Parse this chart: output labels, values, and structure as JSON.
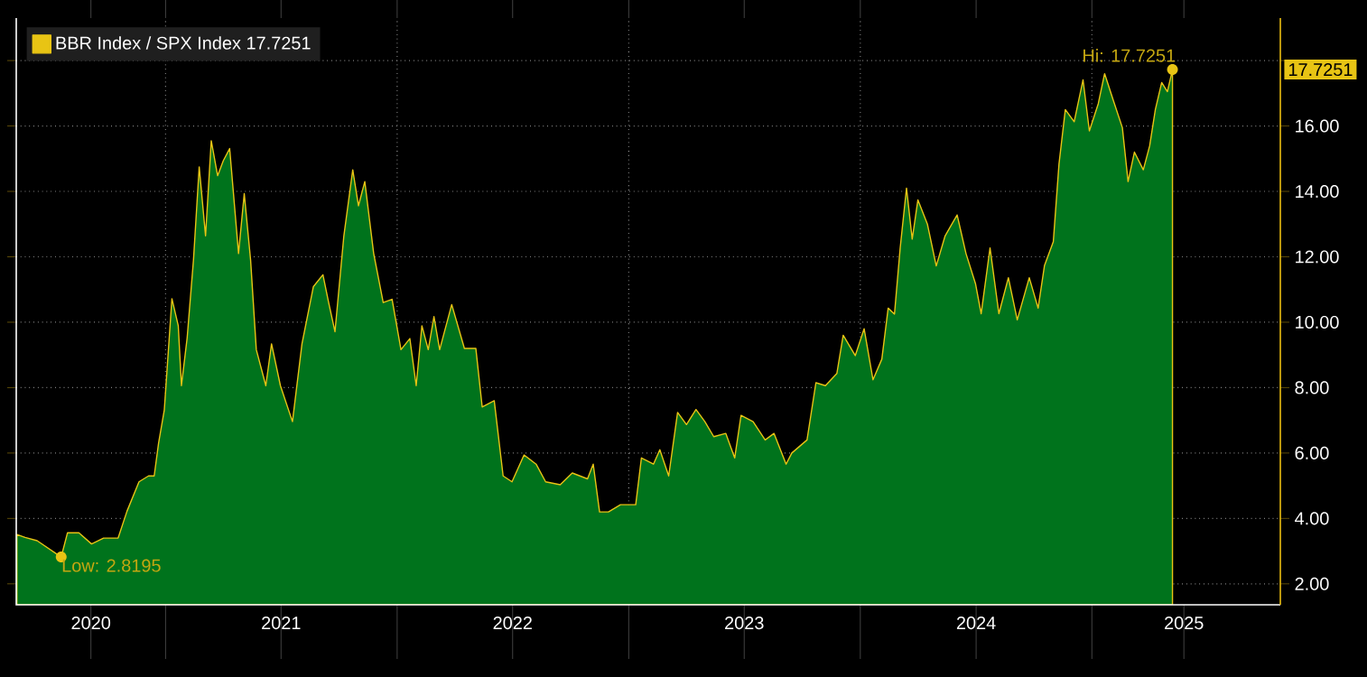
{
  "chart_data": {
    "type": "area",
    "series": [
      {
        "name": "BBR Index / SPX Index 17.7251",
        "color": "#00731c",
        "x": [
          "2020-05-11",
          "2020-05-24",
          "2020-06-12",
          "2020-07-20",
          "2020-07-30",
          "2020-08-17",
          "2020-09-06",
          "2020-09-25",
          "2020-10-18",
          "2020-11-01",
          "2020-11-20",
          "2020-12-05",
          "2020-12-14",
          "2020-12-21",
          "2020-12-30",
          "2021-01-11",
          "2021-01-21",
          "2021-01-26",
          "2021-02-04",
          "2021-02-14",
          "2021-02-23",
          "2021-03-05",
          "2021-03-14",
          "2021-03-24",
          "2021-04-02",
          "2021-04-12",
          "2021-04-26",
          "2021-05-05",
          "2021-05-15",
          "2021-05-24",
          "2021-06-08",
          "2021-06-17",
          "2021-07-01",
          "2021-07-20",
          "2021-08-04",
          "2021-08-22",
          "2021-09-06",
          "2021-09-15",
          "2021-09-25",
          "2021-10-09",
          "2021-10-23",
          "2021-11-01",
          "2021-11-11",
          "2021-11-25",
          "2021-12-10",
          "2021-12-24",
          "2022-01-07",
          "2022-01-21",
          "2022-01-31",
          "2022-02-09",
          "2022-02-19",
          "2022-02-28",
          "2022-03-09",
          "2022-03-28",
          "2022-04-17",
          "2022-05-05",
          "2022-05-15",
          "2022-06-03",
          "2022-06-17",
          "2022-07-01",
          "2022-07-20",
          "2022-08-08",
          "2022-08-23",
          "2022-09-15",
          "2022-10-04",
          "2022-10-28",
          "2022-11-06",
          "2022-11-16",
          "2022-11-30",
          "2022-12-19",
          "2023-01-12",
          "2023-01-21",
          "2023-02-09",
          "2023-02-19",
          "2023-03-05",
          "2023-03-19",
          "2023-04-02",
          "2023-04-17",
          "2023-05-01",
          "2023-05-15",
          "2023-06-03",
          "2023-06-17",
          "2023-06-27",
          "2023-07-16",
          "2023-08-04",
          "2023-08-18",
          "2023-09-06",
          "2023-09-15",
          "2023-10-09",
          "2023-10-23",
          "2023-11-07",
          "2023-11-25",
          "2023-12-05",
          "2023-12-24",
          "2024-01-07",
          "2024-01-21",
          "2024-02-04",
          "2024-02-14",
          "2024-02-24",
          "2024-03-04",
          "2024-03-14",
          "2024-03-23",
          "2024-04-01",
          "2024-04-16",
          "2024-04-30",
          "2024-05-14",
          "2024-06-02",
          "2024-06-16",
          "2024-07-01",
          "2024-07-10",
          "2024-07-24",
          "2024-08-07",
          "2024-08-22",
          "2024-09-05",
          "2024-09-24",
          "2024-10-08",
          "2024-10-18",
          "2024-11-01",
          "2024-11-10",
          "2024-11-20",
          "2024-12-04",
          "2024-12-18",
          "2024-12-28",
          "2025-01-11",
          "2025-01-21",
          "2025-02-04",
          "2025-02-18",
          "2025-02-27",
          "2025-03-09",
          "2025-03-23",
          "2025-04-02",
          "2025-04-11",
          "2025-04-21",
          "2025-04-30",
          "2025-05-08"
        ],
        "values": [
          3.51,
          3.42,
          3.32,
          2.8195,
          3.56,
          3.56,
          3.22,
          3.4,
          3.4,
          4.22,
          5.12,
          5.3,
          5.3,
          6.31,
          7.32,
          10.72,
          9.89,
          8.06,
          9.52,
          11.91,
          14.75,
          12.64,
          15.55,
          14.48,
          14.94,
          15.31,
          12.1,
          13.93,
          11.9,
          9.16,
          8.06,
          9.34,
          8.06,
          6.96,
          9.34,
          11.09,
          11.45,
          10.6,
          9.71,
          12.64,
          14.66,
          13.56,
          14.3,
          12.1,
          10.6,
          10.7,
          9.16,
          9.5,
          8.06,
          9.89,
          9.16,
          10.17,
          9.16,
          10.54,
          9.2,
          9.2,
          7.41,
          7.6,
          5.3,
          5.12,
          5.94,
          5.66,
          5.12,
          5.03,
          5.39,
          5.21,
          5.66,
          4.2,
          4.2,
          4.42,
          4.42,
          5.85,
          5.66,
          6.1,
          5.3,
          7.24,
          6.87,
          7.33,
          6.96,
          6.5,
          6.6,
          5.85,
          7.15,
          6.96,
          6.4,
          6.6,
          5.66,
          6.0,
          6.4,
          8.15,
          8.06,
          8.43,
          9.6,
          8.98,
          9.8,
          8.24,
          8.87,
          10.43,
          10.25,
          12.27,
          14.1,
          12.54,
          13.74,
          13.0,
          11.72,
          12.64,
          13.28,
          12.1,
          11.18,
          10.26,
          12.27,
          10.26,
          11.36,
          10.07,
          11.36,
          10.43,
          11.73,
          12.46,
          14.84,
          16.5,
          16.13,
          17.41,
          15.85,
          16.68,
          17.6,
          16.77,
          15.95,
          14.3,
          15.2,
          14.66,
          15.39,
          16.5,
          17.33,
          17.05,
          17.7251
        ]
      }
    ],
    "xlim": [
      "2020-05-10",
      "2025-10-25"
    ],
    "xticks": [
      {
        "value": "2021-01-01",
        "label": null
      },
      {
        "value": "2022-01-01",
        "label": null
      },
      {
        "value": "2023-01-01",
        "label": null
      },
      {
        "value": "2024-01-01",
        "label": null
      },
      {
        "value": "2025-01-01",
        "label": null
      },
      {
        "value": "2020-09-05",
        "label": "2020"
      },
      {
        "value": "2021-07-02",
        "label": "2021"
      },
      {
        "value": "2022-07-02",
        "label": "2022"
      },
      {
        "value": "2023-07-02",
        "label": "2023"
      },
      {
        "value": "2024-07-02",
        "label": "2024"
      },
      {
        "value": "2025-05-26",
        "label": "2025"
      }
    ],
    "ylim": [
      1.36,
      19.3
    ],
    "yticks": [
      {
        "value": 2,
        "label": "2.00"
      },
      {
        "value": 4,
        "label": "4.00"
      },
      {
        "value": 6,
        "label": "6.00"
      },
      {
        "value": 8,
        "label": "8.00"
      },
      {
        "value": 10,
        "label": "10.00"
      },
      {
        "value": 12,
        "label": "12.00"
      },
      {
        "value": 14,
        "label": "14.00"
      },
      {
        "value": 16,
        "label": "16.00"
      },
      {
        "value": 18,
        "label": null
      }
    ],
    "annotations": [
      {
        "text": "Low: 2.8195",
        "x": "2020-07-20",
        "y": 2.8195
      },
      {
        "text": "Hi: 17.7251",
        "x": "2025-05-08",
        "y": 17.7251
      },
      "17.7251"
    ],
    "grid": true,
    "legend": "top left"
  }
}
